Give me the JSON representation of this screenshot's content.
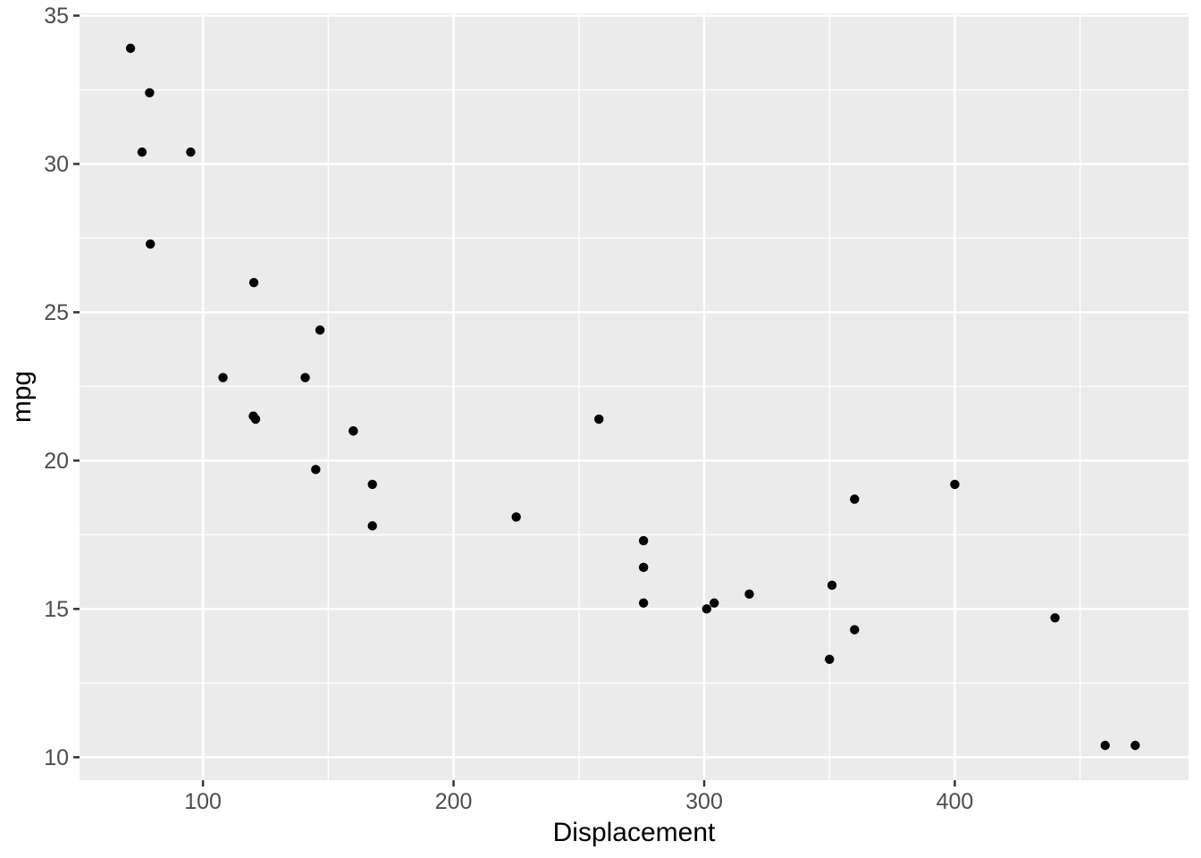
{
  "chart_data": {
    "type": "scatter",
    "title": "",
    "xlabel": "Displacement",
    "ylabel": "mpg",
    "x_major_ticks": [
      100,
      200,
      300,
      400
    ],
    "x_minor_ticks": [
      150,
      250,
      350,
      450
    ],
    "y_major_ticks": [
      10,
      15,
      20,
      25,
      30,
      35
    ],
    "y_minor_ticks": [
      12.5,
      17.5,
      22.5,
      27.5,
      32.5
    ],
    "xlim": [
      50.75,
      493.25
    ],
    "ylim": [
      9.225,
      35.075
    ],
    "grid": "major-and-minor",
    "legend": "none",
    "points": [
      [
        160.0,
        21.0
      ],
      [
        160.0,
        21.0
      ],
      [
        108.0,
        22.8
      ],
      [
        258.0,
        21.4
      ],
      [
        360.0,
        18.7
      ],
      [
        225.0,
        18.1
      ],
      [
        360.0,
        14.3
      ],
      [
        146.7,
        24.4
      ],
      [
        140.8,
        22.8
      ],
      [
        167.6,
        19.2
      ],
      [
        167.6,
        17.8
      ],
      [
        275.8,
        16.4
      ],
      [
        275.8,
        17.3
      ],
      [
        275.8,
        15.2
      ],
      [
        472.0,
        10.4
      ],
      [
        460.0,
        10.4
      ],
      [
        440.0,
        14.7
      ],
      [
        78.7,
        32.4
      ],
      [
        75.7,
        30.4
      ],
      [
        71.1,
        33.9
      ],
      [
        120.1,
        21.5
      ],
      [
        318.0,
        15.5
      ],
      [
        304.0,
        15.2
      ],
      [
        350.0,
        13.3
      ],
      [
        400.0,
        19.2
      ],
      [
        79.0,
        27.3
      ],
      [
        120.3,
        26.0
      ],
      [
        95.1,
        30.4
      ],
      [
        351.0,
        15.8
      ],
      [
        145.0,
        19.7
      ],
      [
        301.0,
        15.0
      ],
      [
        121.0,
        21.4
      ]
    ],
    "colors": {
      "panel_background": "#EBEBEB",
      "grid_line": "#FFFFFF",
      "point": "#000000",
      "tick_label": "#4D4D4D",
      "axis_title": "#000000",
      "tick_mark": "#333333",
      "figure_background": "#FFFFFF"
    }
  }
}
